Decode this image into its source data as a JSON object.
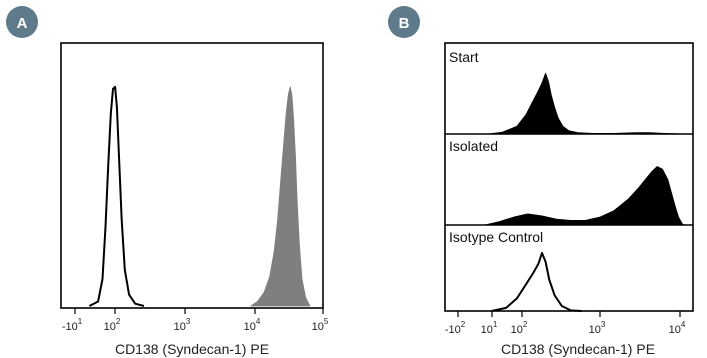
{
  "chart_data": [
    {
      "type": "area",
      "panel_label": "A",
      "xlabel": "CD138 (Syndecan-1) PE",
      "ylabel": "",
      "x_scale": "biexponential",
      "x_ticks": [
        {
          "base": "-10",
          "exp": "1"
        },
        {
          "base": "10",
          "exp": "2"
        },
        {
          "base": "10",
          "exp": "3"
        },
        {
          "base": "10",
          "exp": "4"
        },
        {
          "base": "10",
          "exp": "5"
        }
      ],
      "xlim": [
        -1,
        5
      ],
      "ylim": [
        0,
        1
      ],
      "grid": false,
      "series": [
        {
          "style": "outline",
          "color": "#000000",
          "points": [
            [
              -0.35,
              0
            ],
            [
              -0.15,
              0.02
            ],
            [
              -0.05,
              0.12
            ],
            [
              0.02,
              0.35
            ],
            [
              0.08,
              0.62
            ],
            [
              0.14,
              0.85
            ],
            [
              0.19,
              0.96
            ],
            [
              0.24,
              0.97
            ],
            [
              0.28,
              0.88
            ],
            [
              0.33,
              0.65
            ],
            [
              0.39,
              0.38
            ],
            [
              0.46,
              0.16
            ],
            [
              0.56,
              0.05
            ],
            [
              0.7,
              0.01
            ],
            [
              0.9,
              0
            ]
          ]
        },
        {
          "style": "filled",
          "color": "#7f7f7f",
          "points": [
            [
              3.35,
              0
            ],
            [
              3.5,
              0.02
            ],
            [
              3.65,
              0.06
            ],
            [
              3.78,
              0.13
            ],
            [
              3.88,
              0.24
            ],
            [
              3.96,
              0.38
            ],
            [
              4.03,
              0.55
            ],
            [
              4.1,
              0.72
            ],
            [
              4.16,
              0.86
            ],
            [
              4.21,
              0.94
            ],
            [
              4.25,
              0.97
            ],
            [
              4.29,
              0.93
            ],
            [
              4.33,
              0.82
            ],
            [
              4.37,
              0.66
            ],
            [
              4.41,
              0.46
            ],
            [
              4.46,
              0.27
            ],
            [
              4.52,
              0.12
            ],
            [
              4.6,
              0.04
            ],
            [
              4.7,
              0
            ]
          ]
        }
      ]
    },
    {
      "type": "area",
      "panel_label": "B",
      "xlabel": "CD138 (Syndecan-1) PE",
      "ylabel": "",
      "x_scale": "biexponential",
      "x_ticks": [
        {
          "base": "-10",
          "exp": "2"
        },
        {
          "base": "10",
          "exp": "1"
        },
        {
          "base": "10",
          "exp": "2"
        },
        {
          "base": "10",
          "exp": "3"
        },
        {
          "base": "10",
          "exp": "4"
        }
      ],
      "xlim": [
        -2.5,
        4.4
      ],
      "ylim": [
        0,
        1
      ],
      "grid": false,
      "subpanels": [
        {
          "label": "Start",
          "style": "filled",
          "color": "#000000",
          "points": [
            [
              -1.3,
              0
            ],
            [
              -0.9,
              0.03
            ],
            [
              -0.5,
              0.12
            ],
            [
              -0.25,
              0.3
            ],
            [
              -0.05,
              0.52
            ],
            [
              0.1,
              0.68
            ],
            [
              0.2,
              0.8
            ],
            [
              0.3,
              0.95
            ],
            [
              0.38,
              0.82
            ],
            [
              0.46,
              0.6
            ],
            [
              0.55,
              0.42
            ],
            [
              0.65,
              0.25
            ],
            [
              0.78,
              0.12
            ],
            [
              0.95,
              0.05
            ],
            [
              1.2,
              0.02
            ],
            [
              1.6,
              0.01
            ],
            [
              2.2,
              0.01
            ],
            [
              2.8,
              0.02
            ],
            [
              3.2,
              0.02
            ],
            [
              3.6,
              0.01
            ],
            [
              4.2,
              0
            ]
          ]
        },
        {
          "label": "Isolated",
          "style": "filled",
          "color": "#000000",
          "points": [
            [
              -1.4,
              0
            ],
            [
              -1.0,
              0.05
            ],
            [
              -0.6,
              0.12
            ],
            [
              -0.2,
              0.17
            ],
            [
              0.2,
              0.14
            ],
            [
              0.6,
              0.09
            ],
            [
              1.0,
              0.07
            ],
            [
              1.4,
              0.07
            ],
            [
              1.8,
              0.12
            ],
            [
              2.2,
              0.22
            ],
            [
              2.6,
              0.4
            ],
            [
              2.9,
              0.58
            ],
            [
              3.1,
              0.72
            ],
            [
              3.25,
              0.82
            ],
            [
              3.4,
              0.9
            ],
            [
              3.55,
              0.86
            ],
            [
              3.7,
              0.7
            ],
            [
              3.8,
              0.5
            ],
            [
              3.9,
              0.3
            ],
            [
              4.0,
              0.12
            ],
            [
              4.1,
              0.02
            ],
            [
              4.15,
              0
            ]
          ]
        },
        {
          "label": "Isotype Control",
          "style": "outline",
          "color": "#000000",
          "points": [
            [
              -1.2,
              0
            ],
            [
              -0.8,
              0.05
            ],
            [
              -0.5,
              0.2
            ],
            [
              -0.25,
              0.42
            ],
            [
              -0.05,
              0.6
            ],
            [
              0.1,
              0.75
            ],
            [
              0.2,
              0.92
            ],
            [
              0.3,
              0.78
            ],
            [
              0.4,
              0.5
            ],
            [
              0.55,
              0.25
            ],
            [
              0.75,
              0.08
            ],
            [
              1.0,
              0.01
            ],
            [
              1.3,
              0
            ]
          ]
        }
      ]
    }
  ]
}
